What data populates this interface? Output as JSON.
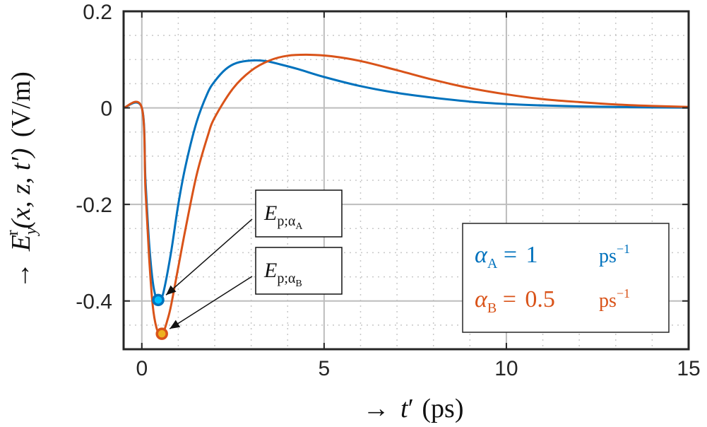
{
  "chart_data": {
    "type": "line",
    "title": "",
    "xlabel": {
      "arrow": "→",
      "var": "t",
      "prime": "′",
      "unit": "(ps)"
    },
    "ylabel": {
      "arrow": "→",
      "var": "E",
      "sup": "r",
      "sub": "y",
      "args": "(x, z, t′)",
      "unit": "(V/m)"
    },
    "xlim": [
      -0.5,
      15
    ],
    "ylim": [
      -0.5,
      0.2
    ],
    "xticks": [
      0,
      5,
      10,
      15
    ],
    "xtick_labels": [
      "0",
      "5",
      "10",
      "15"
    ],
    "yticks": [
      0.2,
      0,
      -0.2,
      -0.4
    ],
    "ytick_labels": [
      "0.2",
      "0",
      "-0.2",
      "-0.4"
    ],
    "grid": true,
    "minor_grid": true,
    "series": [
      {
        "name": "α_A = 1 ps⁻¹",
        "color": "#0072BD",
        "x": [
          -0.5,
          0,
          0.1,
          0.2,
          0.3,
          0.4,
          0.5,
          0.6,
          0.8,
          1.0,
          1.2,
          1.5,
          1.8,
          2.0,
          2.3,
          2.6,
          3.0,
          3.4,
          3.8,
          4.3,
          5,
          6,
          7,
          8,
          9,
          10,
          11,
          12,
          13,
          14,
          15
        ],
        "y": [
          0,
          0,
          -0.15,
          -0.28,
          -0.36,
          -0.395,
          -0.398,
          -0.38,
          -0.3,
          -0.2,
          -0.12,
          -0.03,
          0.03,
          0.055,
          0.08,
          0.093,
          0.098,
          0.097,
          0.09,
          0.08,
          0.064,
          0.045,
          0.031,
          0.021,
          0.013,
          0.008,
          0.005,
          0.003,
          0.002,
          0.001,
          0.0005
        ]
      },
      {
        "name": "α_B = 0.5 ps⁻¹",
        "color": "#D95319",
        "x": [
          -0.5,
          0,
          0.1,
          0.2,
          0.3,
          0.4,
          0.5,
          0.6,
          0.7,
          0.8,
          1.0,
          1.2,
          1.5,
          1.8,
          2.0,
          2.5,
          3.0,
          3.5,
          4.0,
          4.6,
          5.2,
          6,
          7,
          8,
          9,
          10,
          11,
          12,
          13,
          14,
          15
        ],
        "y": [
          0,
          0,
          -0.17,
          -0.31,
          -0.41,
          -0.455,
          -0.468,
          -0.463,
          -0.44,
          -0.41,
          -0.33,
          -0.25,
          -0.14,
          -0.06,
          -0.02,
          0.04,
          0.077,
          0.098,
          0.108,
          0.11,
          0.107,
          0.097,
          0.078,
          0.058,
          0.041,
          0.028,
          0.018,
          0.012,
          0.007,
          0.004,
          0.002
        ]
      }
    ],
    "peak_markers": [
      {
        "series": "α_A",
        "x": 0.45,
        "y": -0.398,
        "fill": "#00BFFF",
        "edge": "#0072BD"
      },
      {
        "series": "α_B",
        "x": 0.55,
        "y": -0.468,
        "fill": "#EDB120",
        "edge": "#D95319"
      }
    ],
    "annotations": [
      {
        "label_main": "E",
        "label_sub": "p;α",
        "label_subsub": "A",
        "target": {
          "x": 0.45,
          "y": -0.398
        }
      },
      {
        "label_main": "E",
        "label_sub": "p;α",
        "label_subsub": "B",
        "target": {
          "x": 0.55,
          "y": -0.468
        }
      }
    ],
    "legend": {
      "placement": "lower-right",
      "entries": [
        {
          "sym": "α",
          "sub": "A",
          "eq": " =  ",
          "value": "1",
          "unit": "ps",
          "exp": "−1",
          "color": "#0072BD"
        },
        {
          "sym": "α",
          "sub": "B",
          "eq": " = ",
          "value": "0.5",
          "unit": "ps",
          "exp": "−1",
          "color": "#D95319"
        }
      ]
    }
  }
}
